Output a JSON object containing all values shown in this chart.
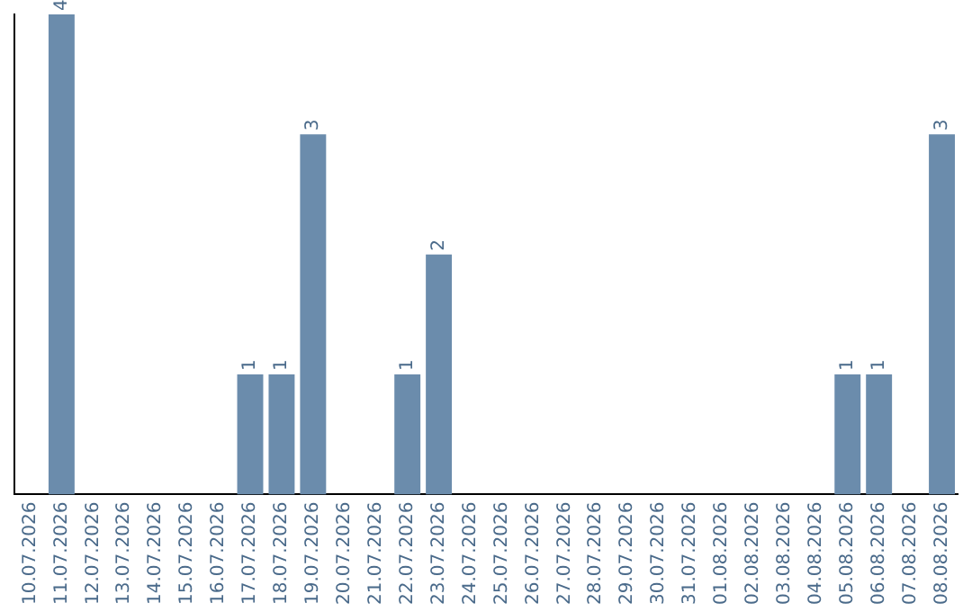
{
  "chart_data": {
    "type": "bar",
    "categories": [
      "10.07.2026",
      "11.07.2026",
      "12.07.2026",
      "13.07.2026",
      "14.07.2026",
      "15.07.2026",
      "16.07.2026",
      "17.07.2026",
      "18.07.2026",
      "19.07.2026",
      "20.07.2026",
      "21.07.2026",
      "22.07.2026",
      "23.07.2026",
      "24.07.2026",
      "25.07.2026",
      "26.07.2026",
      "27.07.2026",
      "28.07.2026",
      "29.07.2026",
      "30.07.2026",
      "31.07.2026",
      "01.08.2026",
      "02.08.2026",
      "03.08.2026",
      "04.08.2026",
      "05.08.2026",
      "06.08.2026",
      "07.08.2026",
      "08.08.2026"
    ],
    "values": [
      0,
      4,
      0,
      0,
      0,
      0,
      0,
      1,
      1,
      3,
      0,
      0,
      1,
      2,
      0,
      0,
      0,
      0,
      0,
      0,
      0,
      0,
      0,
      0,
      0,
      0,
      1,
      1,
      0,
      3
    ],
    "value_labels": [
      null,
      "4",
      null,
      null,
      null,
      null,
      null,
      "1",
      "1",
      "3",
      null,
      null,
      "1",
      "2",
      null,
      null,
      null,
      null,
      null,
      null,
      null,
      null,
      null,
      null,
      null,
      null,
      "1",
      "1",
      null,
      "3"
    ],
    "color": "#6b8cac",
    "grid": false,
    "legend": false,
    "tick_labels": "x"
  }
}
